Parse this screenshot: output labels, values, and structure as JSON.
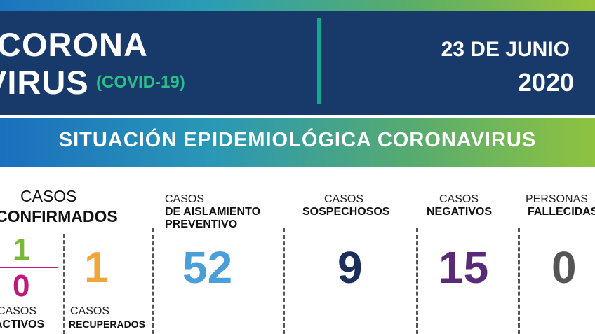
{
  "header": {
    "title_line1": "CORONA",
    "title_line2": "VIRUS",
    "subtitle": "(COVID-19)",
    "date": "23 DE JUNIO",
    "year": "2020"
  },
  "banner": {
    "text": "SITUACIÓN EPIDEMIOLÓGICA CORONAVIRUS"
  },
  "confirmed": {
    "title_line1": "CASOS",
    "title_line2": "CONFIRMADOS",
    "top_value": "1",
    "bottom_value": "0",
    "active_label_1": "CASOS",
    "active_label_2": "ACTIVOS"
  },
  "recovered": {
    "value": "1",
    "label_1": "CASOS",
    "label_2": "RECUPERADOS"
  },
  "preventive": {
    "label_1": "CASOS",
    "label_2": "DE AISLAMIENTO",
    "label_3": "PREVENTIVO",
    "value": "52"
  },
  "suspected": {
    "label_1": "CASOS",
    "label_2": "SOSPECHOSOS",
    "value": "9"
  },
  "negative": {
    "label_1": "CASOS",
    "label_2": "NEGATIVOS",
    "value": "15"
  },
  "deceased": {
    "label_1": "PERSONAS",
    "label_2": "FALLECIDAS",
    "value": "0"
  },
  "colors": {
    "header_bg": "#173a6a",
    "accent_green": "#2bbf88",
    "confirmed_green": "#7ab83a",
    "active_magenta": "#c2187a",
    "recovered_orange": "#f2a53a",
    "preventive_blue": "#4a9fd8",
    "suspected_navy": "#1c2e5c",
    "negative_purple": "#5a2a78",
    "deceased_gray": "#555555"
  }
}
